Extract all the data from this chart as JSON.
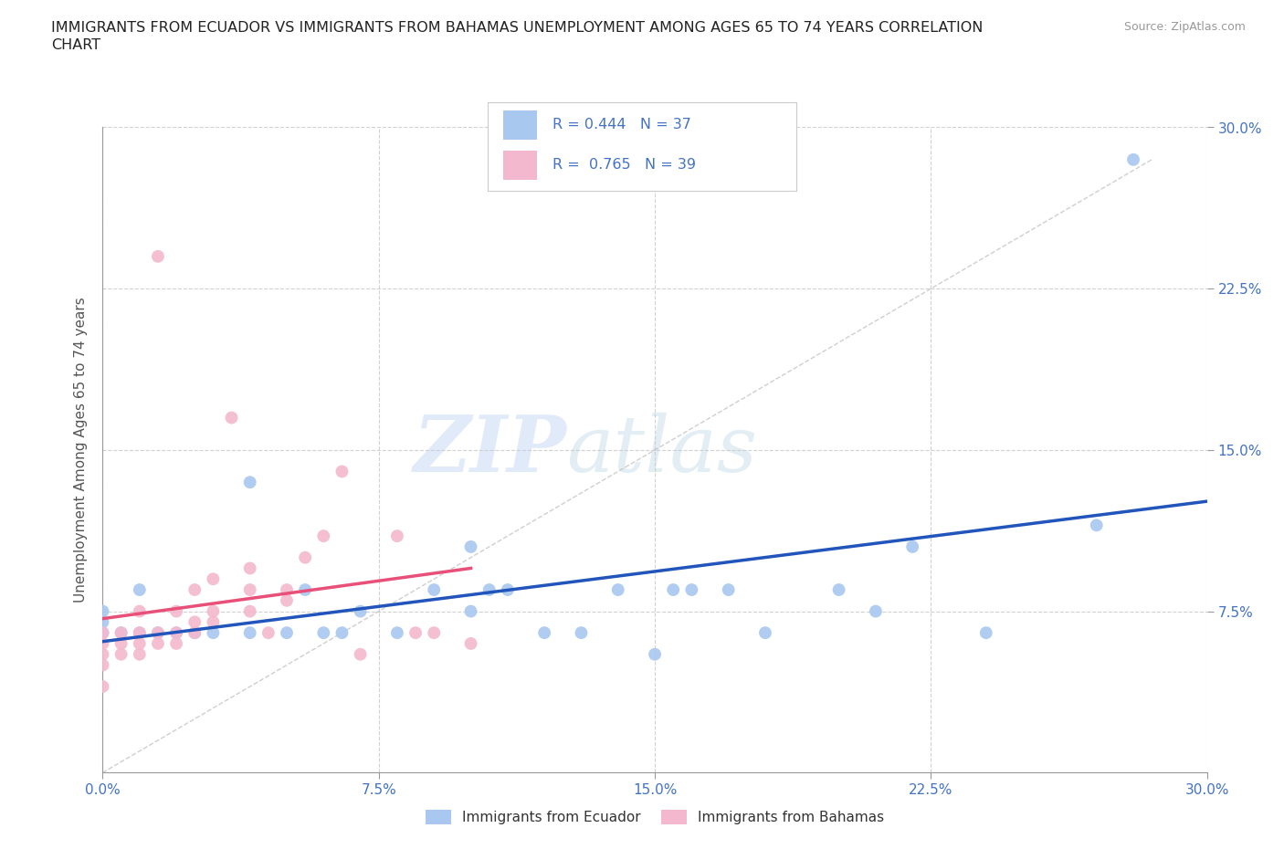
{
  "title_line1": "IMMIGRANTS FROM ECUADOR VS IMMIGRANTS FROM BAHAMAS UNEMPLOYMENT AMONG AGES 65 TO 74 YEARS CORRELATION",
  "title_line2": "CHART",
  "source": "Source: ZipAtlas.com",
  "ylabel": "Unemployment Among Ages 65 to 74 years",
  "xlim": [
    0.0,
    0.3
  ],
  "ylim": [
    0.0,
    0.3
  ],
  "xtick_labels": [
    "0.0%",
    "7.5%",
    "15.0%",
    "22.5%",
    "30.0%"
  ],
  "xtick_vals": [
    0.0,
    0.075,
    0.15,
    0.225,
    0.3
  ],
  "ytick_labels": [
    "7.5%",
    "15.0%",
    "22.5%",
    "30.0%"
  ],
  "ytick_vals": [
    0.075,
    0.15,
    0.225,
    0.3
  ],
  "ecuador_color": "#a8c8f0",
  "bahamas_color": "#f4b8ce",
  "ecuador_line_color": "#2255bb",
  "bahamas_line_color": "#e8507a",
  "ecuador_R": "0.444",
  "ecuador_N": "37",
  "bahamas_R": "0.765",
  "bahamas_N": "39",
  "legend_text_color": "#4472c4",
  "watermark_zip": "ZIP",
  "watermark_atlas": "atlas",
  "background_color": "#ffffff",
  "grid_color": "#cccccc",
  "ecuador_label": "Immigrants from Ecuador",
  "bahamas_label": "Immigrants from Bahamas",
  "ecuador_x": [
    0.0,
    0.0,
    0.0,
    0.005,
    0.01,
    0.01,
    0.015,
    0.02,
    0.025,
    0.03,
    0.04,
    0.04,
    0.05,
    0.055,
    0.06,
    0.065,
    0.07,
    0.08,
    0.09,
    0.1,
    0.1,
    0.105,
    0.11,
    0.12,
    0.13,
    0.14,
    0.15,
    0.155,
    0.16,
    0.17,
    0.18,
    0.2,
    0.21,
    0.22,
    0.24,
    0.27,
    0.28
  ],
  "ecuador_y": [
    0.065,
    0.07,
    0.075,
    0.065,
    0.065,
    0.085,
    0.065,
    0.065,
    0.065,
    0.065,
    0.065,
    0.135,
    0.065,
    0.085,
    0.065,
    0.065,
    0.075,
    0.065,
    0.085,
    0.075,
    0.105,
    0.085,
    0.085,
    0.065,
    0.065,
    0.085,
    0.055,
    0.085,
    0.085,
    0.085,
    0.065,
    0.085,
    0.075,
    0.105,
    0.065,
    0.115,
    0.285
  ],
  "bahamas_x": [
    0.0,
    0.0,
    0.0,
    0.0,
    0.0,
    0.005,
    0.005,
    0.005,
    0.01,
    0.01,
    0.01,
    0.01,
    0.015,
    0.015,
    0.015,
    0.02,
    0.02,
    0.02,
    0.025,
    0.025,
    0.025,
    0.03,
    0.03,
    0.03,
    0.035,
    0.04,
    0.04,
    0.04,
    0.045,
    0.05,
    0.05,
    0.055,
    0.06,
    0.065,
    0.07,
    0.08,
    0.085,
    0.09,
    0.1
  ],
  "bahamas_y": [
    0.04,
    0.05,
    0.055,
    0.06,
    0.065,
    0.055,
    0.06,
    0.065,
    0.055,
    0.06,
    0.065,
    0.075,
    0.06,
    0.065,
    0.24,
    0.06,
    0.065,
    0.075,
    0.065,
    0.07,
    0.085,
    0.07,
    0.075,
    0.09,
    0.165,
    0.075,
    0.085,
    0.095,
    0.065,
    0.08,
    0.085,
    0.1,
    0.11,
    0.14,
    0.055,
    0.11,
    0.065,
    0.065,
    0.06
  ]
}
